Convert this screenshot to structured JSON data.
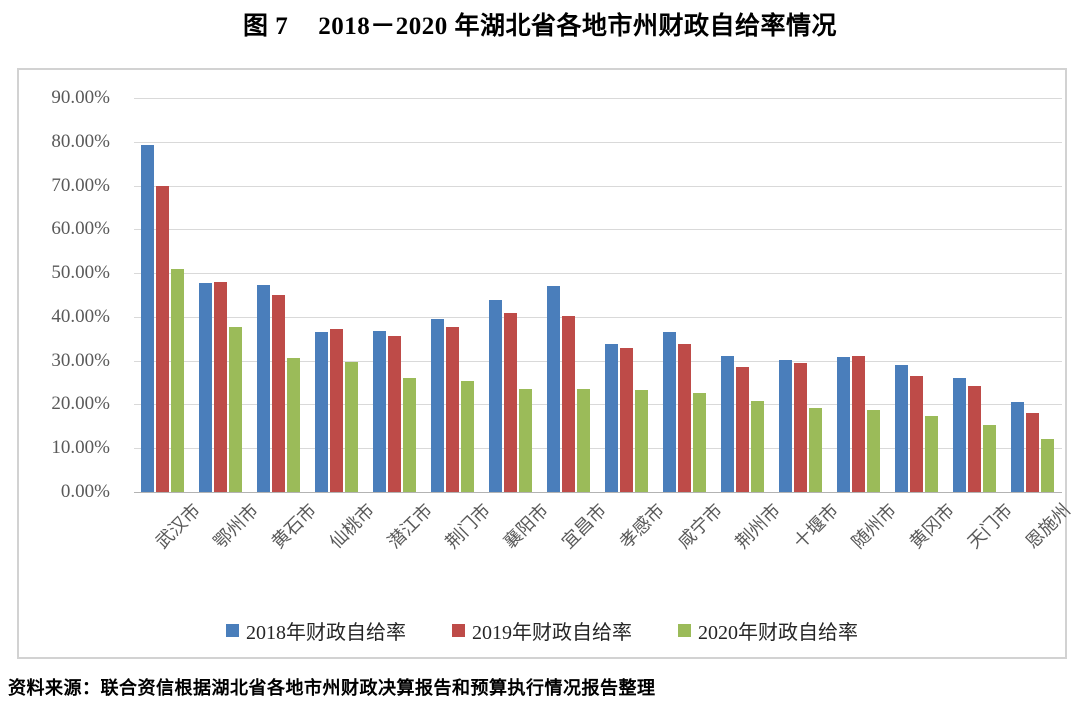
{
  "figure_label": "图 7",
  "title": "2018－2020 年湖北省各地市州财政自给率情况",
  "source_note": "资料来源：联合资信根据湖北省各地市州财政决算报告和预算执行情况报告整理",
  "chart_data": {
    "type": "bar",
    "title": "图 7 2018－2020 年湖北省各地市州财政自给率情况",
    "xlabel": "",
    "ylabel": "",
    "categories": [
      "武汉市",
      "鄂州市",
      "黄石市",
      "仙桃市",
      "潜江市",
      "荆门市",
      "襄阳市",
      "宜昌市",
      "孝感市",
      "咸宁市",
      "荆州市",
      "十堰市",
      "随州市",
      "黄冈市",
      "天门市",
      "恩施州"
    ],
    "series": [
      {
        "name": "2018年财政自给率",
        "color": "#4A7EBB",
        "values": [
          79.3,
          47.7,
          47.2,
          36.6,
          36.8,
          39.6,
          43.8,
          47.0,
          33.8,
          36.5,
          31.0,
          30.2,
          30.8,
          28.9,
          26.0,
          20.5
        ]
      },
      {
        "name": "2019年财政自给率",
        "color": "#BE4B48",
        "values": [
          69.9,
          47.9,
          45.0,
          37.2,
          35.6,
          37.6,
          41.0,
          40.2,
          33.0,
          33.8,
          28.5,
          29.4,
          31.0,
          26.6,
          24.1,
          18.0
        ]
      },
      {
        "name": "2020年财政自给率",
        "color": "#9BBB59",
        "values": [
          51.0,
          37.8,
          30.5,
          29.8,
          26.0,
          25.4,
          23.5,
          23.5,
          23.3,
          22.6,
          20.7,
          19.3,
          18.8,
          17.4,
          15.2,
          12.2
        ]
      }
    ],
    "ylim": [
      0,
      90
    ],
    "ytick_step": 10,
    "ytick_labels": [
      "0.00%",
      "10.00%",
      "20.00%",
      "30.00%",
      "40.00%",
      "50.00%",
      "60.00%",
      "70.00%",
      "80.00%",
      "90.00%"
    ],
    "grid": true,
    "legend_position": "bottom"
  }
}
